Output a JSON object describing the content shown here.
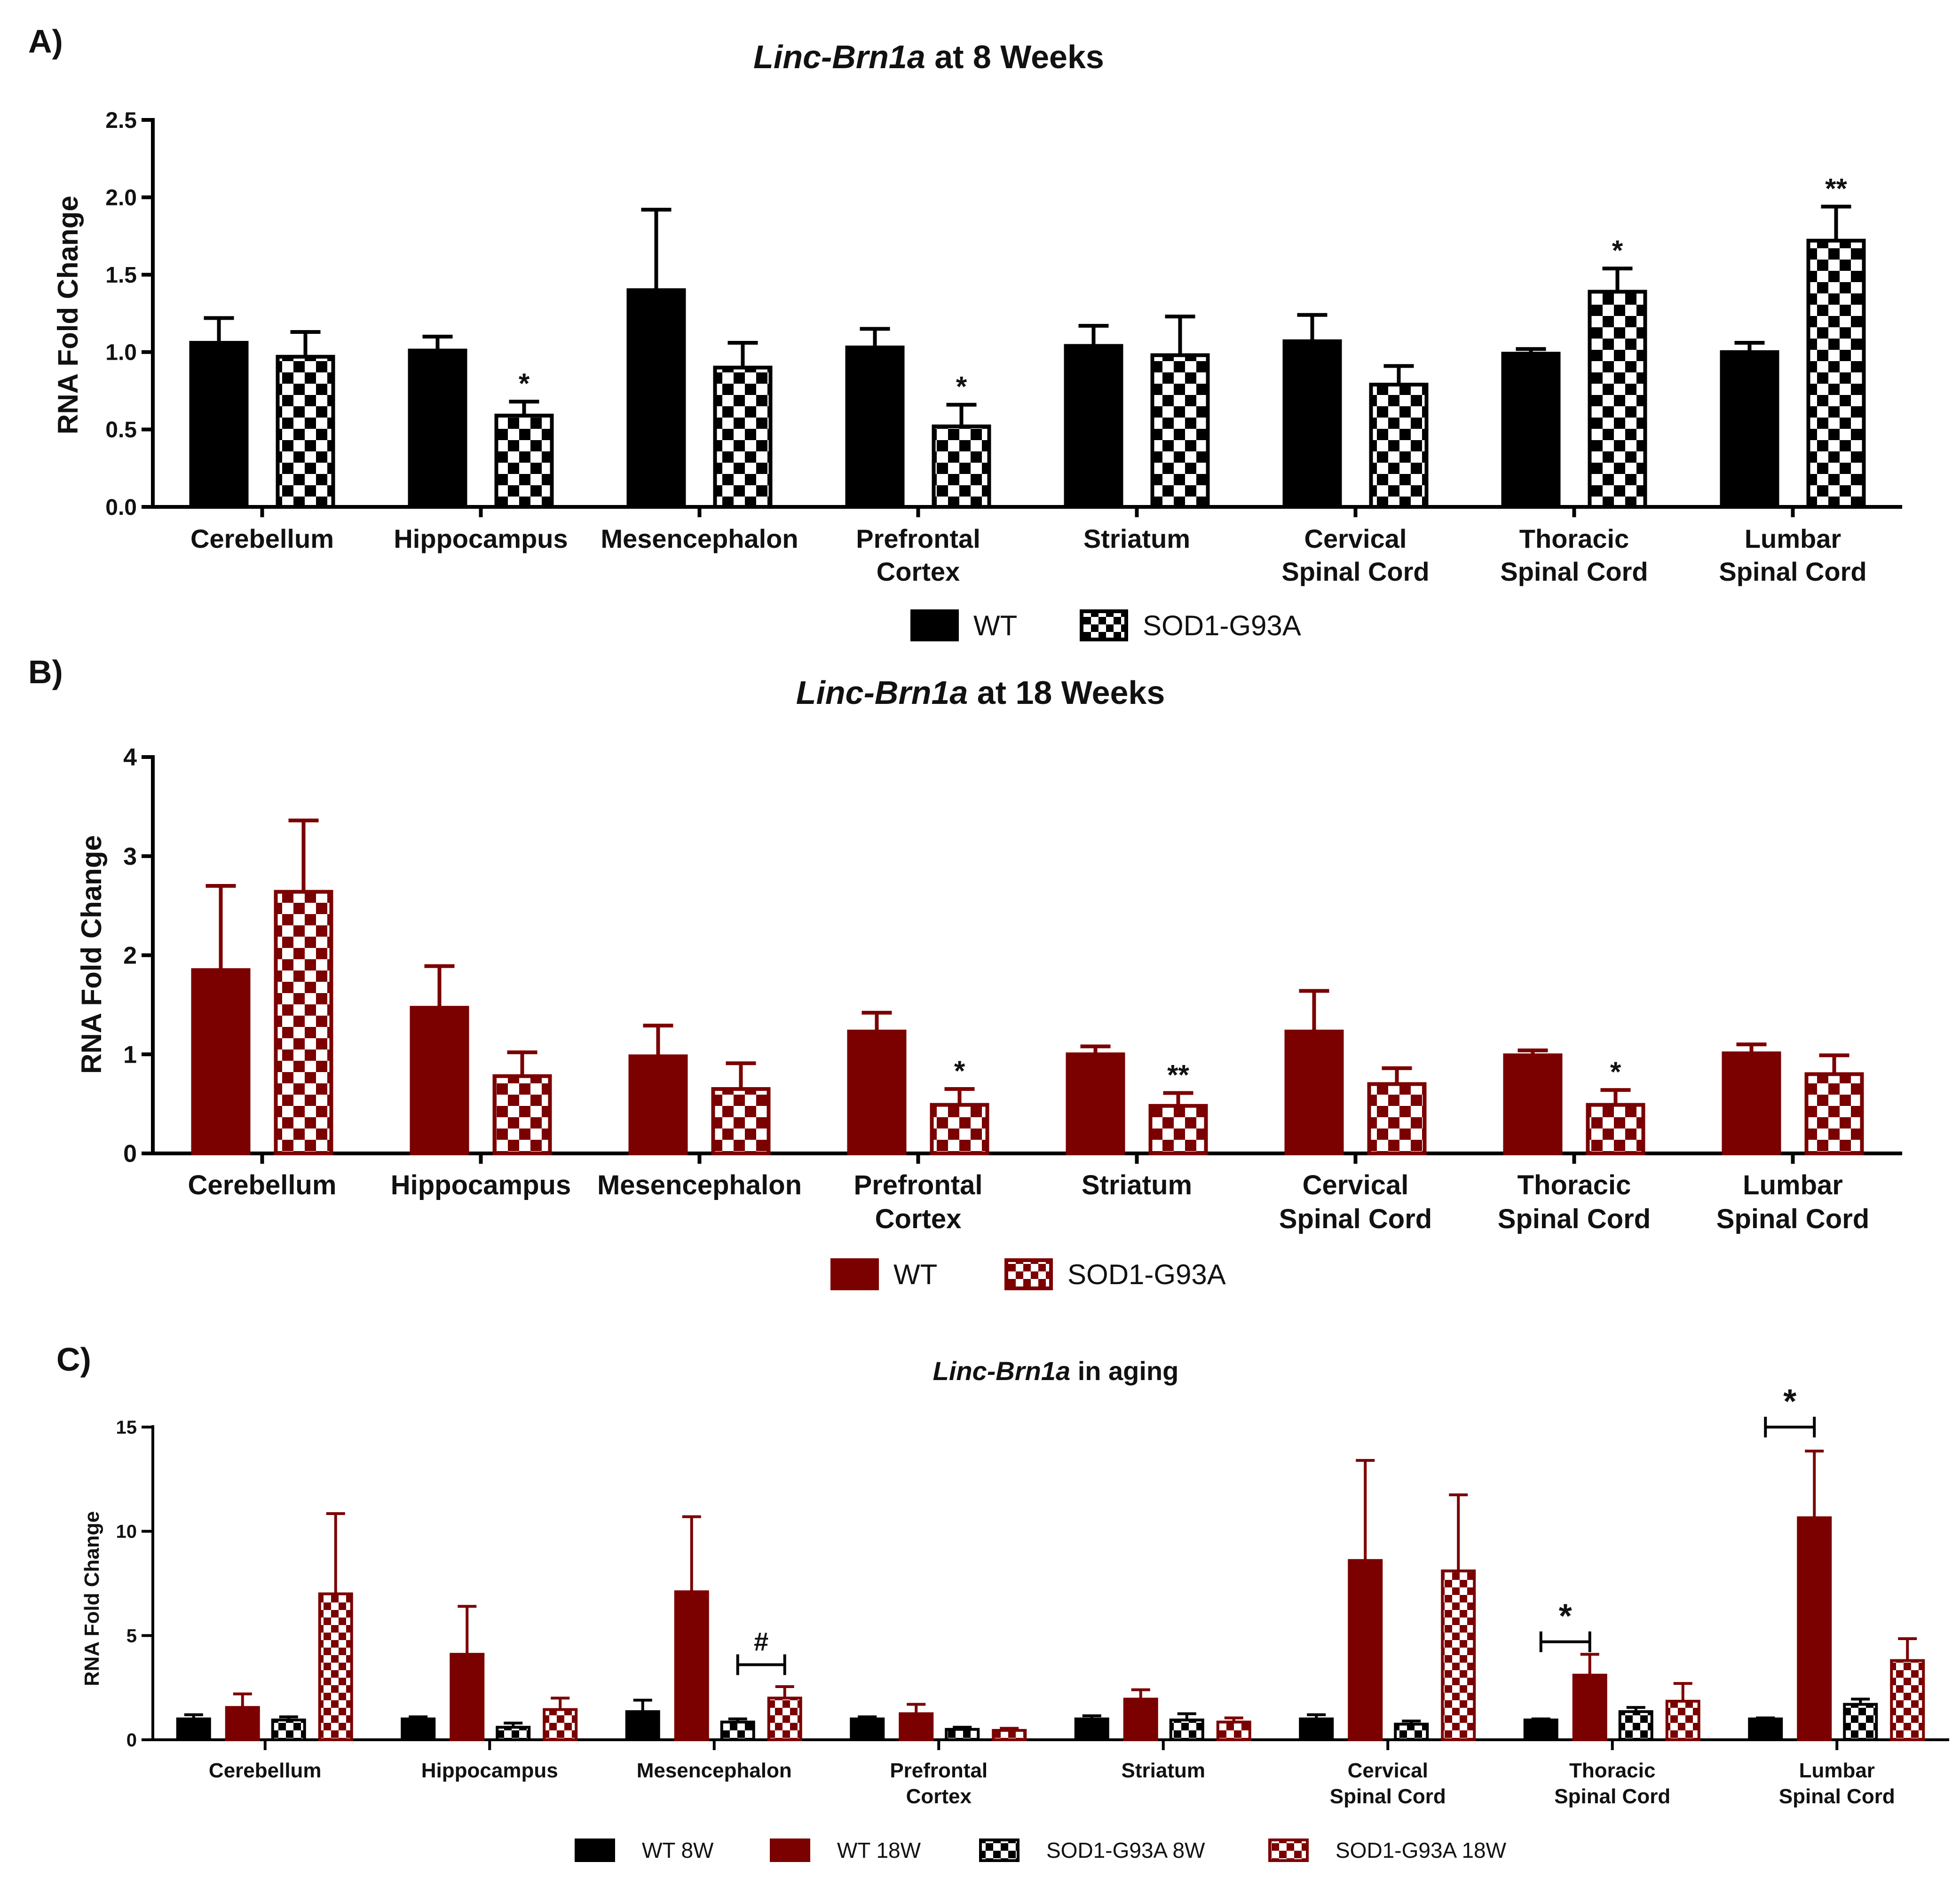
{
  "chart_data": [
    {
      "id": "A",
      "panel_label": "A)",
      "type": "bar",
      "title_italic": "Linc-Brn1a",
      "title_rest": " at 8 Weeks",
      "xlabel": "",
      "ylabel": "RNA Fold Change",
      "ylim": [
        0,
        2.5
      ],
      "yticks": [
        0.0,
        0.5,
        1.0,
        1.5,
        2.0,
        2.5
      ],
      "ytick_labels": [
        "0.0",
        "0.5",
        "1.0",
        "1.5",
        "2.0",
        "2.5"
      ],
      "categories": [
        [
          "Cerebellum"
        ],
        [
          "Hippocampus"
        ],
        [
          "Mesencephalon"
        ],
        [
          "Prefrontal",
          "Cortex"
        ],
        [
          "Striatum"
        ],
        [
          "Cervical",
          "Spinal Cord"
        ],
        [
          "Thoracic",
          "Spinal Cord"
        ],
        [
          "Lumbar",
          "Spinal Cord"
        ]
      ],
      "series": [
        {
          "name": "WT",
          "color": "#000000",
          "pattern": "solid",
          "values": [
            1.06,
            1.01,
            1.4,
            1.03,
            1.04,
            1.07,
            0.99,
            1.0
          ],
          "errors": [
            0.16,
            0.09,
            0.52,
            0.12,
            0.13,
            0.17,
            0.03,
            0.06
          ]
        },
        {
          "name": "SOD1-G93A",
          "color": "#000000",
          "pattern": "checker",
          "values": [
            0.97,
            0.59,
            0.9,
            0.52,
            0.98,
            0.79,
            1.39,
            1.72
          ],
          "errors": [
            0.16,
            0.09,
            0.16,
            0.14,
            0.25,
            0.12,
            0.15,
            0.22
          ]
        }
      ],
      "significance": [
        {
          "series": 1,
          "category": 1,
          "label": "*"
        },
        {
          "series": 1,
          "category": 3,
          "label": "*"
        },
        {
          "series": 1,
          "category": 6,
          "label": "*"
        },
        {
          "series": 1,
          "category": 7,
          "label": "**"
        }
      ],
      "brackets": [],
      "legend": [
        "WT",
        "SOD1-G93A"
      ],
      "legend_position": "bottom-center"
    },
    {
      "id": "B",
      "panel_label": "B)",
      "type": "bar",
      "title_italic": "Linc-Brn1a",
      "title_rest": " at 18 Weeks",
      "xlabel": "",
      "ylabel": "RNA Fold Change",
      "ylim": [
        0,
        4
      ],
      "yticks": [
        0,
        1,
        2,
        3,
        4
      ],
      "ytick_labels": [
        "0",
        "1",
        "2",
        "3",
        "4"
      ],
      "categories": [
        [
          "Cerebellum"
        ],
        [
          "Hippocampus"
        ],
        [
          "Mesencephalon"
        ],
        [
          "Prefrontal",
          "Cortex"
        ],
        [
          "Striatum"
        ],
        [
          "Cervical",
          "Spinal Cord"
        ],
        [
          "Thoracic",
          "Spinal Cord"
        ],
        [
          "Lumbar",
          "Spinal Cord"
        ]
      ],
      "series": [
        {
          "name": "WT",
          "color": "#7b0000",
          "pattern": "solid",
          "values": [
            1.85,
            1.47,
            0.98,
            1.23,
            1.0,
            1.23,
            0.99,
            1.01
          ],
          "errors": [
            0.85,
            0.42,
            0.31,
            0.19,
            0.08,
            0.41,
            0.05,
            0.09
          ]
        },
        {
          "name": "SOD1-G93A",
          "color": "#7b0000",
          "pattern": "checker",
          "values": [
            2.64,
            0.78,
            0.65,
            0.49,
            0.48,
            0.7,
            0.49,
            0.8
          ],
          "errors": [
            0.72,
            0.24,
            0.26,
            0.16,
            0.13,
            0.16,
            0.15,
            0.19
          ]
        }
      ],
      "significance": [
        {
          "series": 1,
          "category": 3,
          "label": "*"
        },
        {
          "series": 1,
          "category": 4,
          "label": "**"
        },
        {
          "series": 1,
          "category": 6,
          "label": "*"
        }
      ],
      "brackets": [],
      "legend": [
        "WT",
        "SOD1-G93A"
      ],
      "legend_position": "bottom-center"
    },
    {
      "id": "C",
      "panel_label": "C)",
      "type": "bar",
      "title_italic": "Linc-Brn1a",
      "title_rest": " in aging",
      "xlabel": "",
      "ylabel": "RNA Fold Change",
      "ylim": [
        0,
        15
      ],
      "yticks": [
        0,
        5,
        10,
        15
      ],
      "ytick_labels": [
        "0",
        "5",
        "10",
        "15"
      ],
      "categories": [
        [
          "Cerebellum"
        ],
        [
          "Hippocampus"
        ],
        [
          "Mesencephalon"
        ],
        [
          "Prefrontal",
          "Cortex"
        ],
        [
          "Striatum"
        ],
        [
          "Cervical",
          "Spinal Cord"
        ],
        [
          "Thoracic",
          "Spinal Cord"
        ],
        [
          "Lumbar",
          "Spinal Cord"
        ]
      ],
      "series": [
        {
          "name": "WT 8W",
          "color": "#000000",
          "pattern": "solid",
          "values": [
            1.0,
            1.0,
            1.35,
            1.0,
            1.0,
            1.0,
            0.95,
            1.0
          ],
          "errors": [
            0.2,
            0.1,
            0.55,
            0.1,
            0.15,
            0.2,
            0.05,
            0.05
          ]
        },
        {
          "name": "WT 18W",
          "color": "#7b0000",
          "pattern": "solid",
          "values": [
            1.55,
            4.1,
            7.1,
            1.25,
            1.95,
            8.6,
            3.1,
            10.65
          ],
          "errors": [
            0.65,
            2.3,
            3.6,
            0.45,
            0.45,
            4.8,
            1.0,
            3.2
          ]
        },
        {
          "name": "SOD1-G93A 8W",
          "color": "#000000",
          "pattern": "checker",
          "values": [
            0.95,
            0.6,
            0.85,
            0.5,
            0.95,
            0.75,
            1.35,
            1.7
          ],
          "errors": [
            0.15,
            0.2,
            0.15,
            0.1,
            0.3,
            0.15,
            0.2,
            0.25
          ]
        },
        {
          "name": "SOD1-G93A 18W",
          "color": "#7b0000",
          "pattern": "checker",
          "values": [
            7.0,
            1.45,
            2.0,
            0.45,
            0.85,
            8.1,
            1.85,
            3.8
          ],
          "errors": [
            3.85,
            0.55,
            0.55,
            0.1,
            0.2,
            3.65,
            0.85,
            1.05
          ]
        }
      ],
      "significance": [],
      "brackets": [
        {
          "category": 2,
          "from_series": 2,
          "to_series": 3,
          "label": "#",
          "y": 3.6
        },
        {
          "category": 6,
          "from_series": 0,
          "to_series": 1,
          "label": "*",
          "y": 4.7
        },
        {
          "category": 7,
          "from_series": 0,
          "to_series": 1,
          "label": "*",
          "y": 15.0
        }
      ],
      "legend": [
        "WT 8W",
        "WT 18W",
        "SOD1-G93A 8W",
        "SOD1-G93A 18W"
      ],
      "legend_position": "bottom-center"
    }
  ]
}
